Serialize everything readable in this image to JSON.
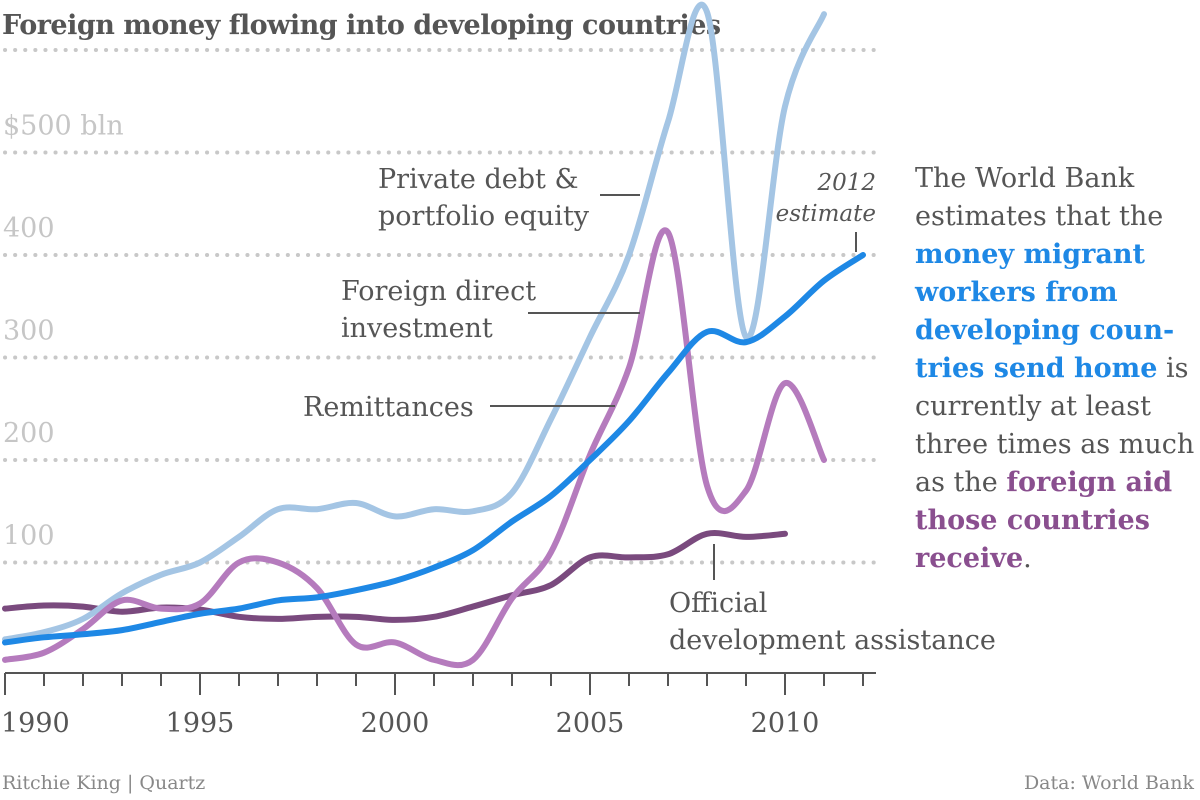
{
  "title": "Foreign money flowing into developing countries",
  "footer": {
    "credit": "Ritchie King | Quartz",
    "source": "Data: World Bank"
  },
  "sidebar": {
    "part1": "The World Bank estimates that the ",
    "highlight1": "money migrant workers from developing coun-tries send home",
    "part2": " is currently at least three times as much as the ",
    "highlight2": "foreign aid those countries receive",
    "part3": "."
  },
  "chart_data": {
    "type": "line",
    "title": "Foreign money flowing into developing countries",
    "xlim": [
      1990,
      2012.5
    ],
    "ylim": [
      0,
      620
    ],
    "y_ticks": [
      {
        "value": 100,
        "label": "100"
      },
      {
        "value": 200,
        "label": "200"
      },
      {
        "value": 300,
        "label": "300"
      },
      {
        "value": 400,
        "label": "400"
      },
      {
        "value": 500,
        "label": "$500 bln"
      }
    ],
    "x_ticks": [
      {
        "value": 1990,
        "label": "1990"
      },
      {
        "value": 1995,
        "label": "1995"
      },
      {
        "value": 2000,
        "label": "2000"
      },
      {
        "value": 2005,
        "label": "2005"
      },
      {
        "value": 2010,
        "label": "2010"
      }
    ],
    "grid": "horizontal dotted",
    "series": [
      {
        "name": "Private debt & portfolio equity",
        "color": "#a4c5e4",
        "x": [
          1990,
          1991,
          1992,
          1993,
          1994,
          1995,
          1996,
          1997,
          1998,
          1999,
          2000,
          2001,
          2002,
          2003,
          2004,
          2005,
          2006,
          2007,
          2008,
          2009,
          2010,
          2011
        ],
        "values": [
          25,
          32,
          45,
          70,
          88,
          100,
          125,
          152,
          152,
          158,
          145,
          152,
          150,
          168,
          240,
          320,
          400,
          530,
          637,
          320,
          545,
          635
        ]
      },
      {
        "name": "Foreign direct investment",
        "color": "#b57bbd",
        "x": [
          1990,
          1991,
          1992,
          1993,
          1994,
          1995,
          1996,
          1997,
          1998,
          1999,
          2000,
          2001,
          2002,
          2003,
          2004,
          2005,
          2006,
          2007,
          2008,
          2009,
          2010,
          2011
        ],
        "values": [
          5,
          12,
          35,
          63,
          55,
          60,
          100,
          100,
          75,
          20,
          22,
          5,
          5,
          65,
          110,
          205,
          290,
          422,
          175,
          170,
          275,
          200
        ]
      },
      {
        "name": "Remittances",
        "color": "#1e88e5",
        "x": [
          1990,
          1991,
          1992,
          1993,
          1994,
          1995,
          1996,
          1997,
          1998,
          1999,
          2000,
          2001,
          2002,
          2003,
          2004,
          2005,
          2006,
          2007,
          2008,
          2009,
          2010,
          2011,
          2012
        ],
        "values": [
          22,
          27,
          30,
          34,
          42,
          50,
          55,
          63,
          66,
          73,
          82,
          95,
          112,
          140,
          165,
          200,
          238,
          285,
          325,
          315,
          340,
          375,
          400
        ]
      },
      {
        "name": "Official development assistance",
        "color": "#7a4a7e",
        "x": [
          1990,
          1991,
          1992,
          1993,
          1994,
          1995,
          1996,
          1997,
          1998,
          1999,
          2000,
          2001,
          2002,
          2003,
          2004,
          2005,
          2006,
          2007,
          2008,
          2009,
          2010
        ],
        "values": [
          55,
          58,
          57,
          52,
          56,
          54,
          47,
          45,
          47,
          47,
          44,
          47,
          57,
          68,
          78,
          105,
          105,
          108,
          128,
          125,
          128
        ]
      }
    ],
    "annotations": [
      {
        "text": "Private debt &",
        "series": "Private debt & portfolio equity"
      },
      {
        "text": "portfolio equity",
        "series": "Private debt & portfolio equity"
      },
      {
        "text": "Foreign direct",
        "series": "Foreign direct investment"
      },
      {
        "text": "investment",
        "series": "Foreign direct investment"
      },
      {
        "text": "Remittances",
        "series": "Remittances"
      },
      {
        "text": "Official",
        "series": "Official development assistance"
      },
      {
        "text": "development assistance",
        "series": "Official development assistance"
      },
      {
        "text": "2012",
        "series": "Remittances"
      },
      {
        "text": "estimate",
        "series": "Remittances"
      }
    ]
  }
}
